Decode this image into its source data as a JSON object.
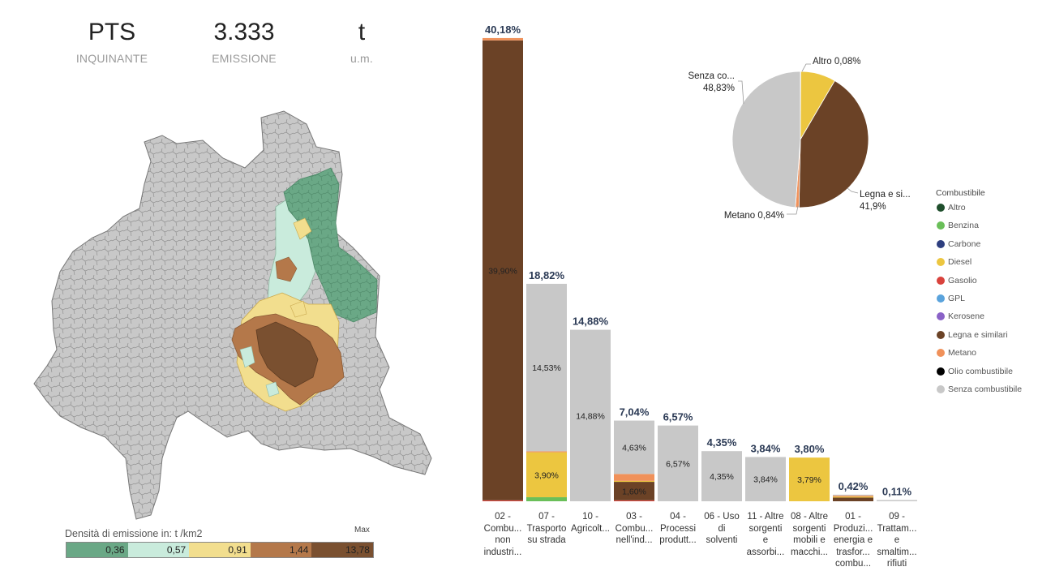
{
  "kpis": [
    {
      "value": "PTS",
      "label": "INQUINANTE"
    },
    {
      "value": "3.333",
      "label": "EMISSIONE"
    },
    {
      "value": "t",
      "label": "u.m."
    }
  ],
  "map_legend": {
    "title": "Densità di emissione in:  t /km2",
    "max_label": "Max",
    "bins": [
      {
        "label": "0,36",
        "color": "#6aa886"
      },
      {
        "label": "0,57",
        "color": "#c9ebdc"
      },
      {
        "label": "0,91",
        "color": "#f2de8e"
      },
      {
        "label": "1,44",
        "color": "#b4784a"
      },
      {
        "label": "13,78",
        "color": "#7a5030"
      }
    ]
  },
  "colors": {
    "Altro": "#1f4e2c",
    "Benzina": "#6abf59",
    "Carbone": "#2e3f7f",
    "Diesel": "#ecc640",
    "Gasolio": "#d9423c",
    "GPL": "#5aa3dc",
    "Kerosene": "#8a62c7",
    "Legna e similari": "#6b4226",
    "Metano": "#f0915a",
    "Olio combustibile": "#000000",
    "Senza combustibile": "#c8c8c8"
  },
  "chart_data": [
    {
      "type": "bar",
      "stacked": true,
      "ylim": [
        0,
        40.18
      ],
      "categories": [
        "02 - Combu... non industri...",
        "07 - Trasporto su strada",
        "10 - Agricolt...",
        "03 - Combu... nell'ind...",
        "04 - Processi produtt...",
        "06 - Uso di solventi",
        "11 - Altre sorgenti e assorbi...",
        "08 - Altre sorgenti mobili e macchi...",
        "01 - Produzi... energia e trasfor... combu...",
        "09 - Trattam... e smaltim... rifiuti"
      ],
      "category_lines": [
        [
          "02 -",
          "Combu...",
          "non",
          "industri..."
        ],
        [
          "07 -",
          "Trasporto",
          "su strada"
        ],
        [
          "10 -",
          "Agricolt..."
        ],
        [
          "03 -",
          "Combu...",
          "nell'ind..."
        ],
        [
          "04 -",
          "Processi",
          "produtt..."
        ],
        [
          "06 - Uso",
          "di",
          "solventi"
        ],
        [
          "11 - Altre",
          "sorgenti",
          "e",
          "assorbi..."
        ],
        [
          "08 - Altre",
          "sorgenti",
          "mobili e",
          "macchi..."
        ],
        [
          "01 -",
          "Produzi...",
          "energia e",
          "trasfor...",
          "combu..."
        ],
        [
          "09 -",
          "Trattam...",
          "e",
          "smaltim...",
          "rifiuti"
        ]
      ],
      "totals": [
        40.18,
        18.82,
        14.88,
        7.04,
        6.57,
        4.35,
        3.84,
        3.8,
        0.42,
        0.11
      ],
      "total_labels": [
        "40,18%",
        "18,82%",
        "14,88%",
        "7,04%",
        "6,57%",
        "4,35%",
        "3,84%",
        "3,80%",
        "0,42%",
        "0,11%"
      ],
      "series": [
        {
          "name": "Senza combustibile",
          "values": [
            0,
            14.53,
            14.88,
            4.63,
            6.57,
            4.35,
            3.84,
            0,
            0.02,
            0.11
          ],
          "labels": [
            "",
            "14,53%",
            "14,88%",
            "4,63%",
            "6,57%",
            "4,35%",
            "3,84%",
            "",
            "",
            ""
          ]
        },
        {
          "name": "Legna e similari",
          "values": [
            39.9,
            0,
            0,
            1.6,
            0,
            0,
            0,
            0,
            0.32,
            0
          ],
          "labels": [
            "39,90%",
            "",
            "",
            "1,60%",
            "",
            "",
            "",
            "",
            "",
            ""
          ]
        },
        {
          "name": "Metano",
          "values": [
            0.2,
            0.02,
            0,
            0.6,
            0,
            0,
            0,
            0,
            0.02,
            0
          ],
          "labels": [
            "",
            "",
            "",
            "",
            "",
            "",
            "",
            "",
            "",
            ""
          ]
        },
        {
          "name": "Diesel",
          "values": [
            0,
            3.9,
            0,
            0.05,
            0,
            0,
            0,
            3.79,
            0.02,
            0
          ],
          "labels": [
            "",
            "3,90%",
            "",
            "",
            "",
            "",
            "",
            "3,79%",
            "",
            ""
          ]
        },
        {
          "name": "Benzina",
          "values": [
            0,
            0.35,
            0,
            0,
            0,
            0,
            0,
            0,
            0,
            0
          ],
          "labels": [
            "",
            "",
            "",
            "",
            "",
            "",
            "",
            "",
            "",
            ""
          ]
        },
        {
          "name": "Gasolio",
          "values": [
            0.08,
            0,
            0,
            0.02,
            0,
            0,
            0,
            0,
            0,
            0
          ],
          "labels": [
            "",
            "",
            "",
            "",
            "",
            "",
            "",
            "",
            "",
            ""
          ]
        }
      ]
    },
    {
      "type": "pie",
      "slices": [
        {
          "name": "Altro",
          "value": 0.08,
          "label": "Altro 0,08%"
        },
        {
          "name": "Diesel",
          "value": 8.35,
          "label": ""
        },
        {
          "name": "Legna e similari",
          "value": 41.9,
          "label": "Legna e si... 41,9%"
        },
        {
          "name": "Metano",
          "value": 0.84,
          "label": "Metano 0,84%"
        },
        {
          "name": "Senza combustibile",
          "value": 48.83,
          "label": "Senza co... 48,83%"
        }
      ],
      "legend": {
        "title": "Combustibile",
        "items": [
          "Altro",
          "Benzina",
          "Carbone",
          "Diesel",
          "Gasolio",
          "GPL",
          "Kerosene",
          "Legna e similari",
          "Metano",
          "Olio combustibile",
          "Senza combustibile"
        ]
      }
    }
  ]
}
